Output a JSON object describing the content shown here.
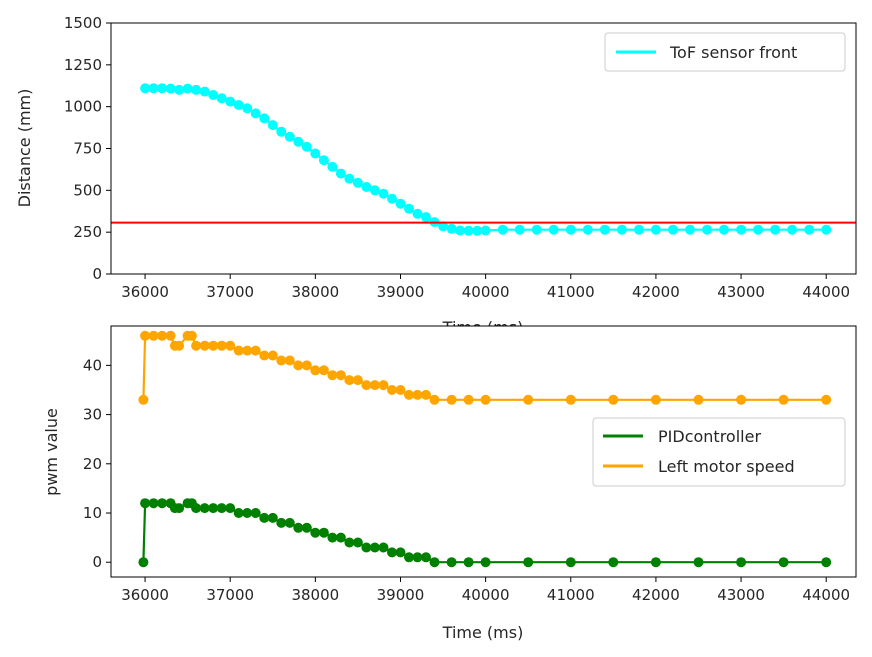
{
  "colors": {
    "tof": "#00ffff",
    "threshold": "#ff0000",
    "pid": "#008000",
    "motor": "#ffa500",
    "axes": "#000000"
  },
  "chart_data": [
    {
      "type": "scatter",
      "xlabel": "Time (ms)",
      "ylabel": "Distance (mm)",
      "xlim": [
        35600,
        44350
      ],
      "ylim": [
        0,
        1500
      ],
      "xticks": [
        "36000",
        "37000",
        "38000",
        "39000",
        "40000",
        "41000",
        "42000",
        "43000",
        "44000"
      ],
      "yticks": [
        "0",
        "250",
        "500",
        "750",
        "1000",
        "1250",
        "1500"
      ],
      "legend_position": "top-right",
      "hline": {
        "y": 307,
        "color": "#ff0000"
      },
      "series": [
        {
          "name": "ToF sensor front",
          "color": "#00ffff",
          "x": [
            36000,
            36100,
            36200,
            36300,
            36400,
            36500,
            36600,
            36700,
            36800,
            36900,
            37000,
            37100,
            37200,
            37300,
            37400,
            37500,
            37600,
            37700,
            37800,
            37900,
            38000,
            38100,
            38200,
            38300,
            38400,
            38500,
            38600,
            38700,
            38800,
            38900,
            39000,
            39100,
            39200,
            39300,
            39400,
            39500,
            39600,
            39700,
            39800,
            39900,
            40000,
            40200,
            40400,
            40600,
            40800,
            41000,
            41200,
            41400,
            41600,
            41800,
            42000,
            42200,
            42400,
            42600,
            42800,
            43000,
            43200,
            43400,
            43600,
            43800,
            44000
          ],
          "y": [
            1110,
            1110,
            1110,
            1108,
            1100,
            1108,
            1100,
            1090,
            1070,
            1050,
            1030,
            1010,
            990,
            960,
            930,
            890,
            850,
            820,
            790,
            760,
            720,
            680,
            640,
            600,
            570,
            545,
            520,
            500,
            480,
            450,
            420,
            390,
            360,
            340,
            310,
            285,
            270,
            260,
            258,
            258,
            260,
            265,
            265,
            265,
            265,
            265,
            265,
            265,
            265,
            265,
            265,
            265,
            265,
            265,
            265,
            265,
            265,
            265,
            265,
            265,
            265
          ]
        }
      ]
    },
    {
      "type": "scatter",
      "xlabel": "Time (ms)",
      "ylabel": "pwm value",
      "xlim": [
        35600,
        44350
      ],
      "ylim": [
        -3,
        48
      ],
      "xticks": [
        "36000",
        "37000",
        "38000",
        "39000",
        "40000",
        "41000",
        "42000",
        "43000",
        "44000"
      ],
      "yticks": [
        "0",
        "10",
        "20",
        "30",
        "40"
      ],
      "legend_position": "center-right",
      "series": [
        {
          "name": "PIDcontroller",
          "color": "#008000",
          "x": [
            35980,
            36000,
            36100,
            36200,
            36300,
            36350,
            36400,
            36500,
            36550,
            36600,
            36700,
            36800,
            36900,
            37000,
            37100,
            37200,
            37300,
            37400,
            37500,
            37600,
            37700,
            37800,
            37900,
            38000,
            38100,
            38200,
            38300,
            38400,
            38500,
            38600,
            38700,
            38800,
            38900,
            39000,
            39100,
            39200,
            39300,
            39400,
            39600,
            39800,
            40000,
            40500,
            41000,
            41500,
            42000,
            42500,
            43000,
            43500,
            44000
          ],
          "y": [
            0,
            12,
            12,
            12,
            12,
            11,
            11,
            12,
            12,
            11,
            11,
            11,
            11,
            11,
            10,
            10,
            10,
            9,
            9,
            8,
            8,
            7,
            7,
            6,
            6,
            5,
            5,
            4,
            4,
            3,
            3,
            3,
            2,
            2,
            1,
            1,
            1,
            0,
            0,
            0,
            0,
            0,
            0,
            0,
            0,
            0,
            0,
            0,
            0
          ]
        },
        {
          "name": "Left motor speed",
          "color": "#ffa500",
          "x": [
            35980,
            36000,
            36100,
            36200,
            36300,
            36350,
            36400,
            36500,
            36550,
            36600,
            36700,
            36800,
            36900,
            37000,
            37100,
            37200,
            37300,
            37400,
            37500,
            37600,
            37700,
            37800,
            37900,
            38000,
            38100,
            38200,
            38300,
            38400,
            38500,
            38600,
            38700,
            38800,
            38900,
            39000,
            39100,
            39200,
            39300,
            39400,
            39600,
            39800,
            40000,
            40500,
            41000,
            41500,
            42000,
            42500,
            43000,
            43500,
            44000
          ],
          "y": [
            33,
            46,
            46,
            46,
            46,
            44,
            44,
            46,
            46,
            44,
            44,
            44,
            44,
            44,
            43,
            43,
            43,
            42,
            42,
            41,
            41,
            40,
            40,
            39,
            39,
            38,
            38,
            37,
            37,
            36,
            36,
            36,
            35,
            35,
            34,
            34,
            34,
            33,
            33,
            33,
            33,
            33,
            33,
            33,
            33,
            33,
            33,
            33,
            33
          ]
        }
      ]
    }
  ]
}
